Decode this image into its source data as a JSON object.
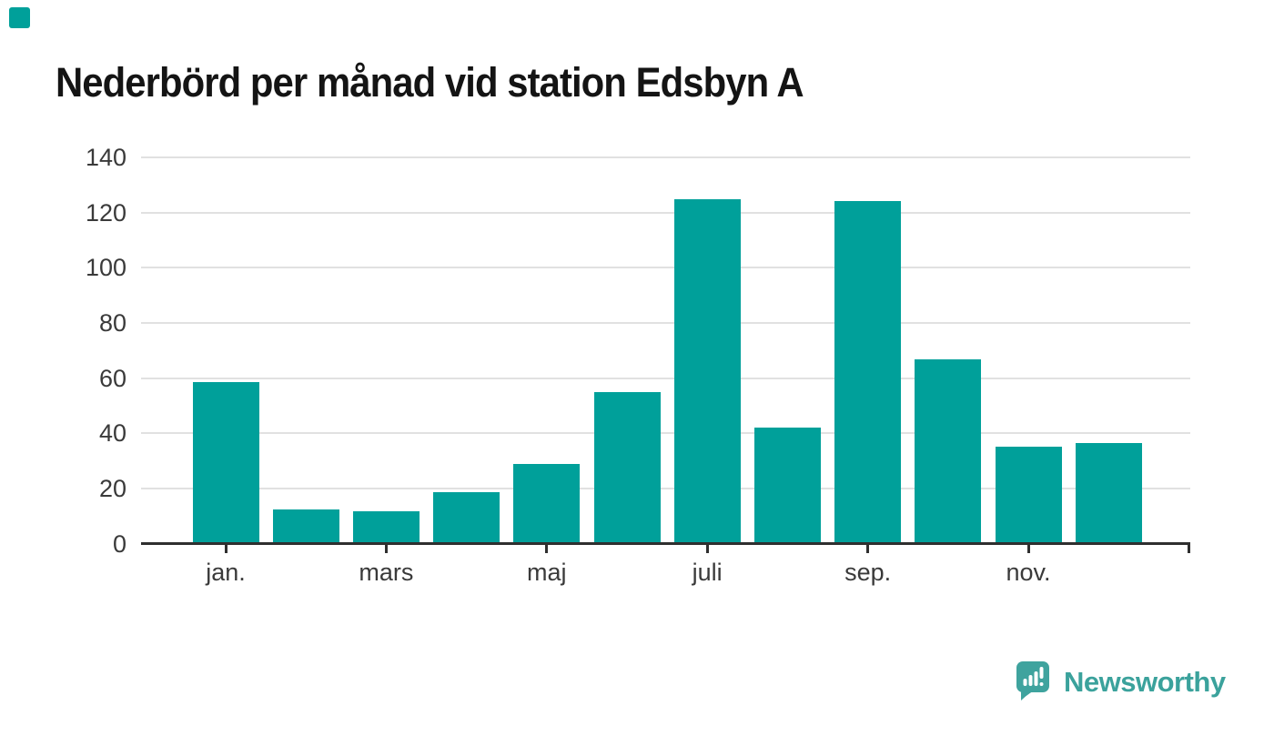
{
  "title": "Nederbörd per månad vid station Edsbyn A",
  "chart_data": {
    "type": "bar",
    "title": "Nederbörd per månad vid station Edsbyn A",
    "x_labels": [
      "jan.",
      "",
      "mars",
      "",
      "maj",
      "",
      "juli",
      "",
      "sep.",
      "",
      "nov.",
      ""
    ],
    "values": [
      58.5,
      12.4,
      11.6,
      18.5,
      28.7,
      54.8,
      124.7,
      41.9,
      124.3,
      66.9,
      35.2,
      36.5
    ],
    "y_ticks": [
      0,
      20,
      40,
      60,
      80,
      100,
      120,
      140
    ],
    "ylim": [
      0,
      140
    ],
    "xlabel": "",
    "ylabel": "",
    "grid": true,
    "legend_position": "none",
    "bar_color": "#00a09a"
  },
  "colors": {
    "bar": "#00a09a",
    "brand_square": "#00a09a",
    "logo": "#3ba29c",
    "axis": "#2f2f2f",
    "grid": "#e1e1e1",
    "tick_label": "#3a3a3a",
    "title": "#141414"
  },
  "logo": {
    "text": "Newsworthy",
    "icon": "speech-bubble-bar-chart-icon"
  }
}
